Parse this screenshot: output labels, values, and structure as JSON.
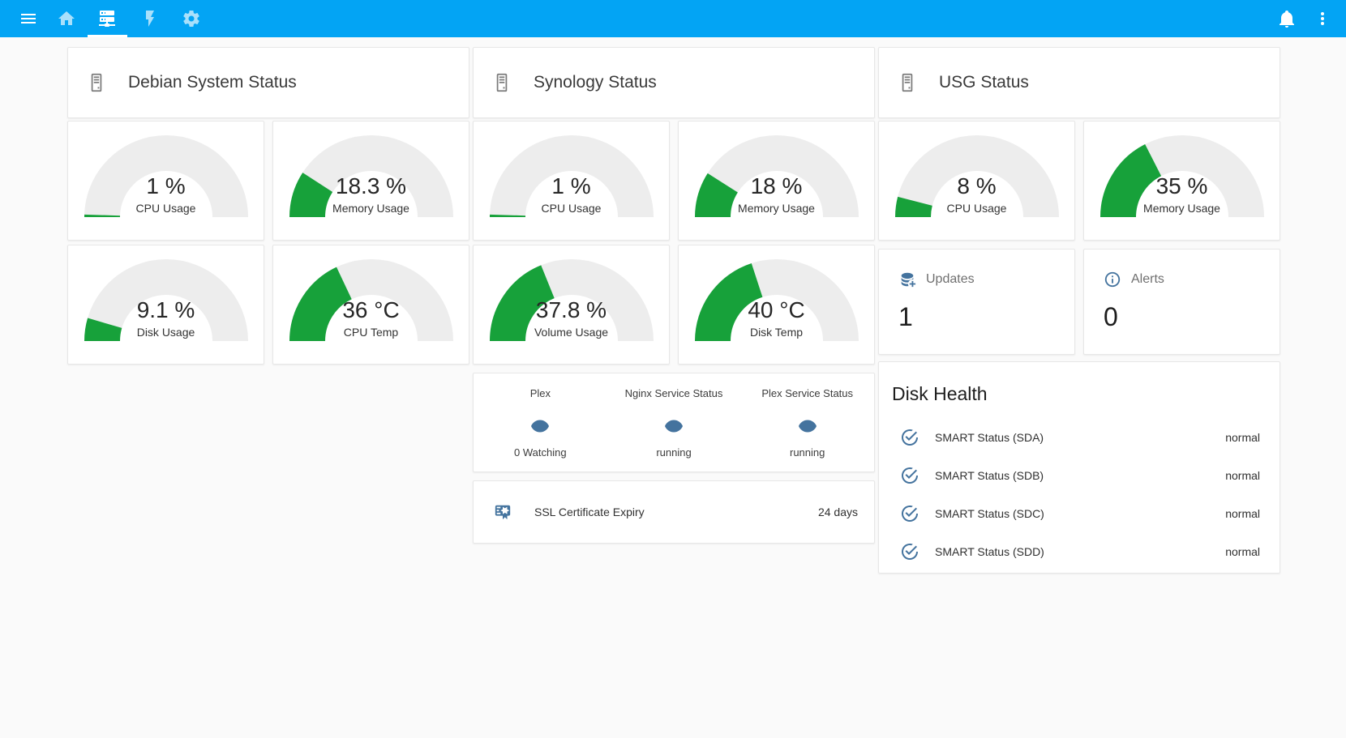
{
  "colors": {
    "app_bar": "#03a4f4",
    "gauge_green": "#17a13a",
    "gauge_track": "#ededed",
    "entity_icon": "#44739e",
    "header_icon": "#7a7a7a",
    "page_bg": "#fafafa",
    "card_bg": "#ffffff"
  },
  "toolbar": {
    "tabs": [
      {
        "icon": "home",
        "active": false
      },
      {
        "icon": "server-network",
        "active": true
      },
      {
        "icon": "flash",
        "active": false
      },
      {
        "icon": "settings",
        "active": false
      }
    ]
  },
  "columns": [
    {
      "title": "Debian System Status",
      "gauges": [
        {
          "display": "1 %",
          "label": "CPU Usage",
          "value": 1,
          "max": 100
        },
        {
          "display": "18.3 %",
          "label": "Memory Usage",
          "value": 18.3,
          "max": 100
        },
        {
          "display": "9.1 %",
          "label": "Disk Usage",
          "value": 9.1,
          "max": 100
        },
        {
          "display": "36 °C",
          "label": "CPU Temp",
          "value": 36,
          "max": 100
        }
      ]
    },
    {
      "title": "Synology Status",
      "gauges": [
        {
          "display": "1 %",
          "label": "CPU Usage",
          "value": 1,
          "max": 100
        },
        {
          "display": "18 %",
          "label": "Memory Usage",
          "value": 18,
          "max": 100
        },
        {
          "display": "37.8 %",
          "label": "Volume Usage",
          "value": 37.8,
          "max": 100
        },
        {
          "display": "40 °C",
          "label": "Disk Temp",
          "value": 40,
          "max": 100
        }
      ],
      "services": [
        {
          "name": "Plex",
          "state": "0 Watching"
        },
        {
          "name": "Nginx Service Status",
          "state": "running"
        },
        {
          "name": "Plex Service Status",
          "state": "running"
        }
      ],
      "ssl": {
        "label": "SSL Certificate Expiry",
        "value": "24 days"
      }
    },
    {
      "title": "USG Status",
      "gauges": [
        {
          "display": "8 %",
          "label": "CPU Usage",
          "value": 8,
          "max": 100
        },
        {
          "display": "35 %",
          "label": "Memory Usage",
          "value": 35,
          "max": 100
        }
      ],
      "stats": [
        {
          "label": "Updates",
          "value": "1"
        },
        {
          "label": "Alerts",
          "value": "0"
        }
      ],
      "disk_health": {
        "title": "Disk Health",
        "rows": [
          {
            "label": "SMART Status (SDA)",
            "value": "normal"
          },
          {
            "label": "SMART Status (SDB)",
            "value": "normal"
          },
          {
            "label": "SMART Status (SDC)",
            "value": "normal"
          },
          {
            "label": "SMART Status (SDD)",
            "value": "normal"
          }
        ]
      }
    }
  ]
}
